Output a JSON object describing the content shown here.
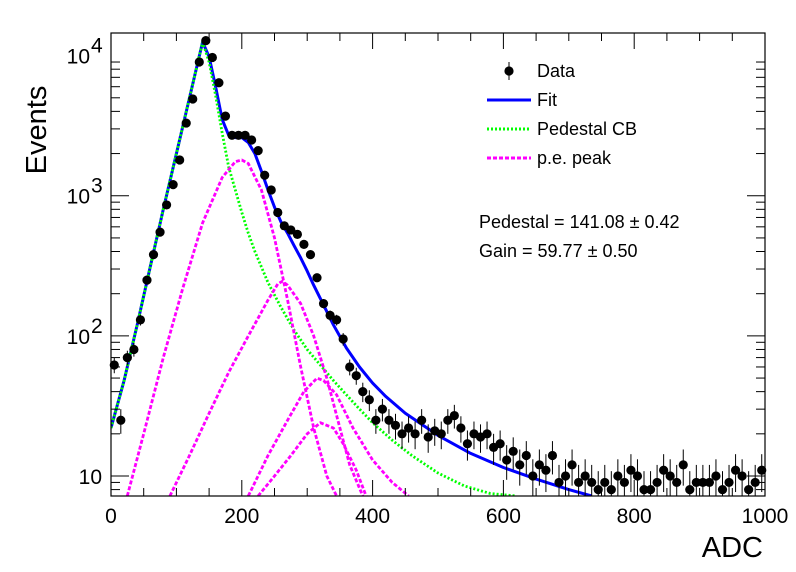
{
  "chart_data": {
    "type": "scatter",
    "title": "",
    "xlabel": "ADC",
    "ylabel": "Events",
    "xlim": [
      0,
      1000
    ],
    "ylim": [
      7.2,
      14500
    ],
    "yscale": "log",
    "grid": false,
    "legend_position": "top-right",
    "x_ticks": [
      "0",
      "200",
      "400",
      "600",
      "800",
      "1000"
    ],
    "y_ticks": [
      {
        "value": 10,
        "label": "10"
      },
      {
        "value": 100,
        "label": "10",
        "exponent": "2"
      },
      {
        "value": 1000,
        "label": "10",
        "exponent": "3"
      },
      {
        "value": 10000,
        "label": "10",
        "exponent": "4"
      }
    ],
    "legend": [
      {
        "name": "Data",
        "style": "marker",
        "color": "#000000"
      },
      {
        "name": "Fit",
        "style": "line",
        "color": "#0000ff"
      },
      {
        "name": "Pedestal CB",
        "style": "dotted",
        "color": "#00ff00"
      },
      {
        "name": "p.e. peak",
        "style": "dashed",
        "color": "#ff00ff"
      }
    ],
    "annotations": [
      {
        "label": "Pedestal = 141.08",
        "pm": "± 0.42"
      },
      {
        "label": "Gain = 59.77",
        "pm": "± 0.50"
      }
    ],
    "series": [
      {
        "name": "Data",
        "kind": "points",
        "color": "#000000",
        "points": [
          [
            5,
            62
          ],
          [
            15,
            25
          ],
          [
            25,
            70
          ],
          [
            35,
            80
          ],
          [
            45,
            130
          ],
          [
            55,
            250
          ],
          [
            65,
            380
          ],
          [
            75,
            550
          ],
          [
            85,
            860
          ],
          [
            95,
            1200
          ],
          [
            105,
            1800
          ],
          [
            115,
            3300
          ],
          [
            125,
            4900
          ],
          [
            135,
            9000
          ],
          [
            145,
            12800
          ],
          [
            155,
            9700
          ],
          [
            165,
            6400
          ],
          [
            175,
            3700
          ],
          [
            185,
            2700
          ],
          [
            195,
            2700
          ],
          [
            205,
            2700
          ],
          [
            215,
            2500
          ],
          [
            225,
            2100
          ],
          [
            235,
            1400
          ],
          [
            245,
            1100
          ],
          [
            255,
            760
          ],
          [
            265,
            610
          ],
          [
            275,
            570
          ],
          [
            285,
            530
          ],
          [
            295,
            450
          ],
          [
            305,
            380
          ],
          [
            315,
            260
          ],
          [
            325,
            170
          ],
          [
            335,
            140
          ],
          [
            345,
            130
          ],
          [
            355,
            95
          ],
          [
            365,
            60
          ],
          [
            375,
            52
          ],
          [
            385,
            40
          ],
          [
            395,
            35
          ],
          [
            405,
            25
          ],
          [
            415,
            30
          ],
          [
            425,
            25
          ],
          [
            435,
            23
          ],
          [
            445,
            20
          ],
          [
            455,
            22
          ],
          [
            465,
            20
          ],
          [
            475,
            25
          ],
          [
            485,
            19
          ],
          [
            495,
            21
          ],
          [
            505,
            20
          ],
          [
            515,
            25
          ],
          [
            525,
            27
          ],
          [
            535,
            22
          ],
          [
            545,
            17
          ],
          [
            555,
            20
          ],
          [
            565,
            19
          ],
          [
            575,
            20
          ],
          [
            585,
            16
          ],
          [
            595,
            17
          ],
          [
            605,
            13
          ],
          [
            615,
            15
          ],
          [
            625,
            12
          ],
          [
            635,
            14
          ],
          [
            645,
            10
          ],
          [
            655,
            12
          ],
          [
            665,
            11
          ],
          [
            675,
            14
          ],
          [
            685,
            9
          ],
          [
            695,
            10
          ],
          [
            705,
            12
          ],
          [
            715,
            9
          ],
          [
            725,
            10
          ],
          [
            735,
            9
          ],
          [
            745,
            8
          ],
          [
            755,
            9
          ],
          [
            765,
            8
          ],
          [
            775,
            10
          ],
          [
            785,
            9
          ],
          [
            795,
            11
          ],
          [
            805,
            10
          ],
          [
            815,
            8
          ],
          [
            825,
            8
          ],
          [
            835,
            9
          ],
          [
            845,
            11
          ],
          [
            855,
            10
          ],
          [
            865,
            9
          ],
          [
            875,
            12
          ],
          [
            885,
            8
          ],
          [
            895,
            9
          ],
          [
            905,
            9
          ],
          [
            915,
            9
          ],
          [
            925,
            10
          ],
          [
            935,
            8
          ],
          [
            945,
            9
          ],
          [
            955,
            11
          ],
          [
            965,
            10
          ],
          [
            975,
            8
          ],
          [
            985,
            9
          ],
          [
            995,
            11
          ]
        ]
      },
      {
        "name": "Fit",
        "kind": "line",
        "color": "#0000ff",
        "points": [
          [
            0,
            22
          ],
          [
            20,
            48
          ],
          [
            40,
            120
          ],
          [
            60,
            310
          ],
          [
            80,
            800
          ],
          [
            100,
            2000
          ],
          [
            120,
            5000
          ],
          [
            140,
            12500
          ],
          [
            150,
            9800
          ],
          [
            160,
            6000
          ],
          [
            170,
            3500
          ],
          [
            180,
            2700
          ],
          [
            190,
            2600
          ],
          [
            200,
            2600
          ],
          [
            210,
            2400
          ],
          [
            220,
            2000
          ],
          [
            230,
            1500
          ],
          [
            240,
            1100
          ],
          [
            250,
            830
          ],
          [
            260,
            650
          ],
          [
            270,
            540
          ],
          [
            280,
            440
          ],
          [
            290,
            360
          ],
          [
            300,
            290
          ],
          [
            310,
            230
          ],
          [
            320,
            185
          ],
          [
            340,
            120
          ],
          [
            360,
            82
          ],
          [
            380,
            60
          ],
          [
            400,
            46
          ],
          [
            420,
            37
          ],
          [
            450,
            28
          ],
          [
            500,
            19.5
          ],
          [
            550,
            14.5
          ],
          [
            600,
            11.5
          ],
          [
            650,
            9.5
          ],
          [
            700,
            8
          ],
          [
            735,
            7.2
          ]
        ]
      },
      {
        "name": "Pedestal CB",
        "kind": "line",
        "color": "#00ff00",
        "points": [
          [
            0,
            22
          ],
          [
            20,
            48
          ],
          [
            40,
            120
          ],
          [
            60,
            310
          ],
          [
            80,
            800
          ],
          [
            100,
            2000
          ],
          [
            120,
            5000
          ],
          [
            140,
            12500
          ],
          [
            150,
            9000
          ],
          [
            160,
            5200
          ],
          [
            170,
            2800
          ],
          [
            180,
            1600
          ],
          [
            190,
            1100
          ],
          [
            200,
            760
          ],
          [
            210,
            540
          ],
          [
            220,
            400
          ],
          [
            240,
            240
          ],
          [
            260,
            160
          ],
          [
            280,
            110
          ],
          [
            300,
            80
          ],
          [
            320,
            62
          ],
          [
            340,
            48
          ],
          [
            360,
            38
          ],
          [
            380,
            30
          ],
          [
            400,
            24
          ],
          [
            430,
            18
          ],
          [
            460,
            14
          ],
          [
            500,
            10.5
          ],
          [
            540,
            8.5
          ],
          [
            580,
            7.5
          ],
          [
            620,
            7.2
          ]
        ]
      },
      {
        "name": "p.e. peak",
        "kind": "line",
        "color": "#ff00ff",
        "points": [
          [
            25,
            7.2
          ],
          [
            50,
            20
          ],
          [
            80,
            70
          ],
          [
            110,
            220
          ],
          [
            140,
            640
          ],
          [
            170,
            1350
          ],
          [
            190,
            1750
          ],
          [
            200,
            1800
          ],
          [
            210,
            1700
          ],
          [
            230,
            1100
          ],
          [
            250,
            500
          ],
          [
            270,
            180
          ],
          [
            290,
            60
          ],
          [
            310,
            22
          ],
          [
            330,
            10
          ],
          [
            345,
            7.2
          ]
        ]
      },
      {
        "name": "p.e. peak",
        "kind": "line",
        "color": "#ff00ff",
        "points": [
          [
            90,
            7.2
          ],
          [
            120,
            14
          ],
          [
            150,
            28
          ],
          [
            180,
            55
          ],
          [
            210,
            100
          ],
          [
            240,
            180
          ],
          [
            255,
            235
          ],
          [
            262,
            245
          ],
          [
            270,
            230
          ],
          [
            290,
            170
          ],
          [
            310,
            100
          ],
          [
            330,
            50
          ],
          [
            350,
            22
          ],
          [
            365,
            12
          ],
          [
            385,
            7.2
          ]
        ]
      },
      {
        "name": "p.e. peak",
        "kind": "line",
        "color": "#ff00ff",
        "points": [
          [
            210,
            7.2
          ],
          [
            240,
            14
          ],
          [
            270,
            25
          ],
          [
            295,
            40
          ],
          [
            315,
            50
          ],
          [
            325,
            48
          ],
          [
            345,
            38
          ],
          [
            370,
            22
          ],
          [
            400,
            13
          ],
          [
            430,
            9
          ],
          [
            455,
            7.2
          ]
        ]
      },
      {
        "name": "p.e. peak",
        "kind": "line",
        "color": "#ff00ff",
        "points": [
          [
            225,
            7.2
          ],
          [
            250,
            10
          ],
          [
            275,
            14
          ],
          [
            300,
            20
          ],
          [
            320,
            24
          ],
          [
            340,
            22
          ],
          [
            355,
            17
          ],
          [
            375,
            11
          ],
          [
            390,
            7.2
          ]
        ]
      }
    ]
  }
}
